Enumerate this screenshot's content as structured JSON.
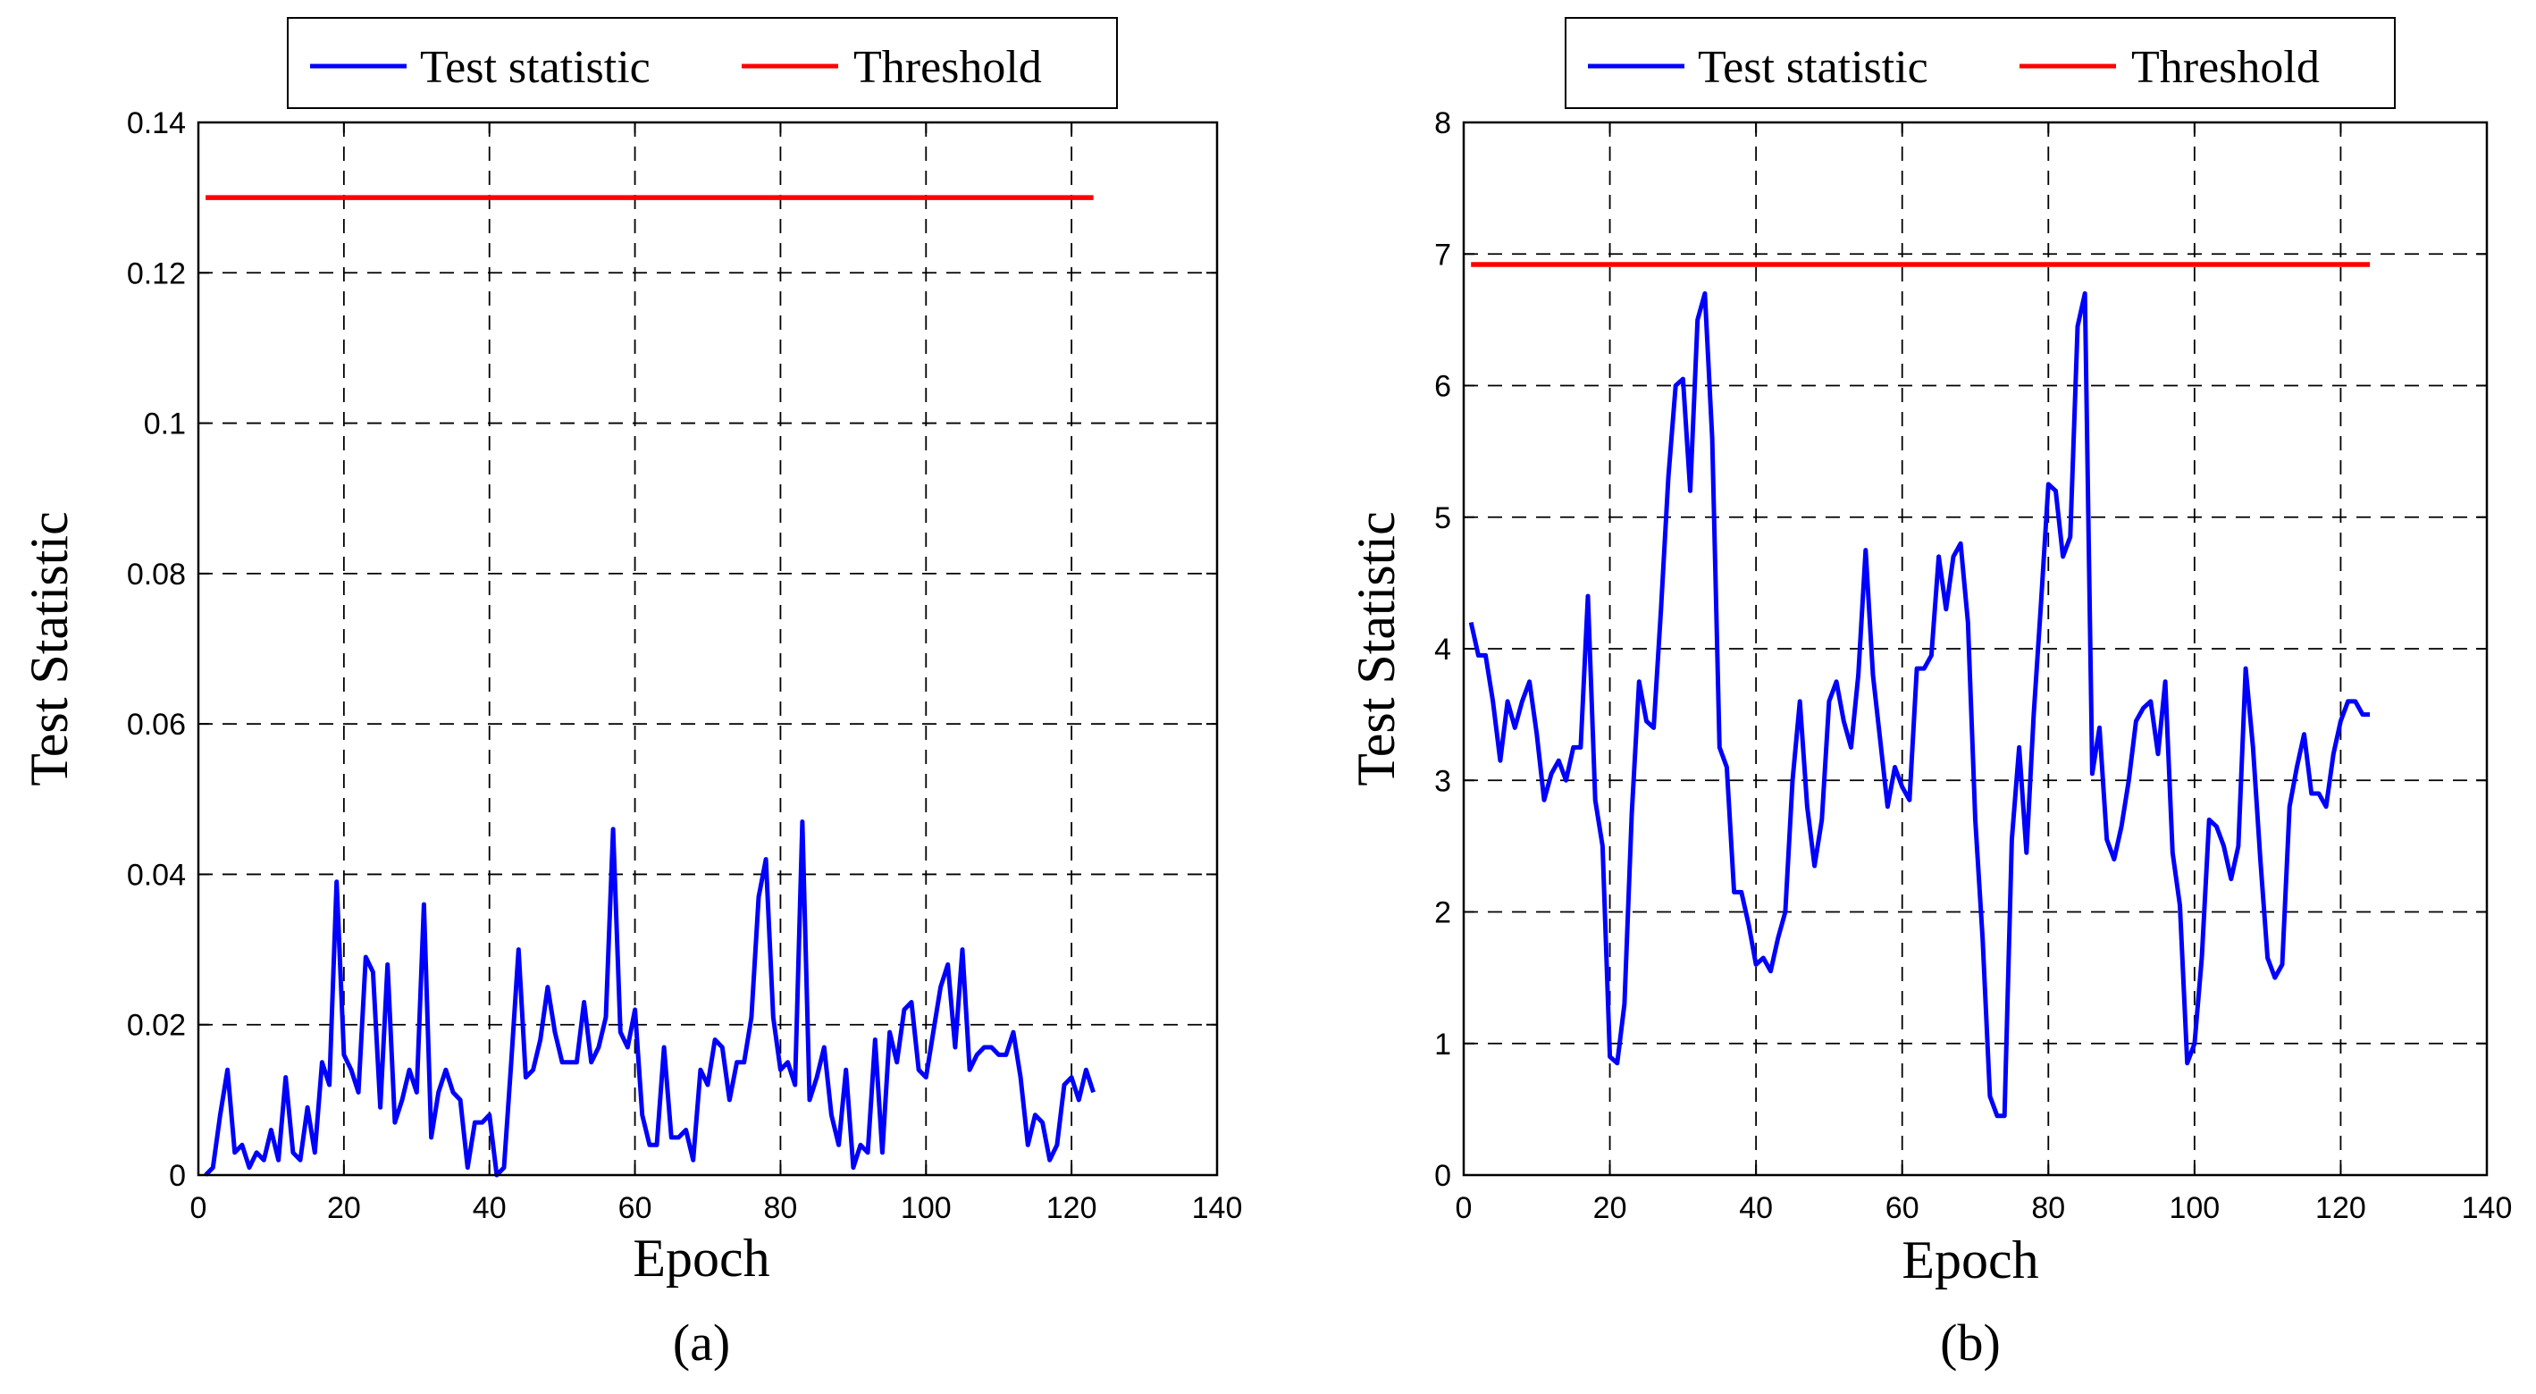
{
  "chart_data": [
    {
      "type": "line",
      "caption": "(a)",
      "xlabel": "Epoch",
      "ylabel": "Test Statistic",
      "xlim": [
        0,
        140
      ],
      "ylim": [
        0,
        0.14
      ],
      "xticks": [
        0,
        20,
        40,
        60,
        80,
        100,
        120,
        140
      ],
      "yticks": [
        0,
        0.02,
        0.04,
        0.06,
        0.08,
        0.1,
        0.12,
        0.14
      ],
      "ytick_labels": [
        "0",
        "0.02",
        "0.04",
        "0.06",
        "0.08",
        "0.1",
        "0.12",
        "0.14"
      ],
      "xtick_labels": [
        "0",
        "20",
        "40",
        "60",
        "80",
        "100",
        "120",
        "140"
      ],
      "grid": true,
      "legend_position": "top",
      "series": [
        {
          "name": "Test statistic",
          "color": "#0000ff",
          "x": [
            1,
            2,
            3,
            4,
            5,
            6,
            7,
            8,
            9,
            10,
            11,
            12,
            13,
            14,
            15,
            16,
            17,
            18,
            19,
            20,
            21,
            22,
            23,
            24,
            25,
            26,
            27,
            28,
            29,
            30,
            31,
            32,
            33,
            34,
            35,
            36,
            37,
            38,
            39,
            40,
            41,
            42,
            43,
            44,
            45,
            46,
            47,
            48,
            49,
            50,
            51,
            52,
            53,
            54,
            55,
            56,
            57,
            58,
            59,
            60,
            61,
            62,
            63,
            64,
            65,
            66,
            67,
            68,
            69,
            70,
            71,
            72,
            73,
            74,
            75,
            76,
            77,
            78,
            79,
            80,
            81,
            82,
            83,
            84,
            85,
            86,
            87,
            88,
            89,
            90,
            91,
            92,
            93,
            94,
            95,
            96,
            97,
            98,
            99,
            100,
            101,
            102,
            103,
            104,
            105,
            106,
            107,
            108,
            109,
            110,
            111,
            112,
            113,
            114,
            115,
            116,
            117,
            118,
            119,
            120,
            121,
            122,
            123
          ],
          "y": [
            0.0,
            0.001,
            0.008,
            0.014,
            0.003,
            0.004,
            0.001,
            0.003,
            0.002,
            0.006,
            0.002,
            0.013,
            0.003,
            0.002,
            0.009,
            0.003,
            0.015,
            0.012,
            0.039,
            0.016,
            0.014,
            0.011,
            0.029,
            0.027,
            0.009,
            0.028,
            0.007,
            0.01,
            0.014,
            0.011,
            0.036,
            0.005,
            0.011,
            0.014,
            0.011,
            0.01,
            0.001,
            0.007,
            0.007,
            0.008,
            0.0,
            0.001,
            0.015,
            0.03,
            0.013,
            0.014,
            0.018,
            0.025,
            0.019,
            0.015,
            0.015,
            0.015,
            0.023,
            0.015,
            0.017,
            0.021,
            0.046,
            0.019,
            0.017,
            0.022,
            0.008,
            0.004,
            0.004,
            0.017,
            0.005,
            0.005,
            0.006,
            0.002,
            0.014,
            0.012,
            0.018,
            0.017,
            0.01,
            0.015,
            0.015,
            0.021,
            0.037,
            0.042,
            0.021,
            0.014,
            0.015,
            0.012,
            0.047,
            0.01,
            0.013,
            0.017,
            0.008,
            0.004,
            0.014,
            0.001,
            0.004,
            0.003,
            0.018,
            0.003,
            0.019,
            0.015,
            0.022,
            0.023,
            0.014,
            0.013,
            0.019,
            0.025,
            0.028,
            0.017,
            0.03,
            0.014,
            0.016,
            0.017,
            0.017,
            0.016,
            0.016,
            0.019,
            0.013,
            0.004,
            0.008,
            0.007,
            0.002,
            0.004,
            0.012,
            0.013,
            0.01,
            0.014,
            0.011
          ]
        },
        {
          "name": "Threshold",
          "color": "#ff0000",
          "x": [
            1,
            123
          ],
          "y": [
            0.13,
            0.13
          ]
        }
      ]
    },
    {
      "type": "line",
      "caption": "(b)",
      "xlabel": "Epoch",
      "ylabel": "Test Statistic",
      "xlim": [
        0,
        140
      ],
      "ylim": [
        0,
        8
      ],
      "xticks": [
        0,
        20,
        40,
        60,
        80,
        100,
        120,
        140
      ],
      "yticks": [
        0,
        1,
        2,
        3,
        4,
        5,
        6,
        7,
        8
      ],
      "ytick_labels": [
        "0",
        "1",
        "2",
        "3",
        "4",
        "5",
        "6",
        "7",
        "8"
      ],
      "xtick_labels": [
        "0",
        "20",
        "40",
        "60",
        "80",
        "100",
        "120",
        "140"
      ],
      "grid": true,
      "legend_position": "top",
      "series": [
        {
          "name": "Test statistic",
          "color": "#0000ff",
          "x": [
            1,
            2,
            3,
            4,
            5,
            6,
            7,
            8,
            9,
            10,
            11,
            12,
            13,
            14,
            15,
            16,
            17,
            18,
            19,
            20,
            21,
            22,
            23,
            24,
            25,
            26,
            27,
            28,
            29,
            30,
            31,
            32,
            33,
            34,
            35,
            36,
            37,
            38,
            39,
            40,
            41,
            42,
            43,
            44,
            45,
            46,
            47,
            48,
            49,
            50,
            51,
            52,
            53,
            54,
            55,
            56,
            57,
            58,
            59,
            60,
            61,
            62,
            63,
            64,
            65,
            66,
            67,
            68,
            69,
            70,
            71,
            72,
            73,
            74,
            75,
            76,
            77,
            78,
            79,
            80,
            81,
            82,
            83,
            84,
            85,
            86,
            87,
            88,
            89,
            90,
            91,
            92,
            93,
            94,
            95,
            96,
            97,
            98,
            99,
            100,
            101,
            102,
            103,
            104,
            105,
            106,
            107,
            108,
            109,
            110,
            111,
            112,
            113,
            114,
            115,
            116,
            117,
            118,
            119,
            120,
            121,
            122,
            123,
            124
          ],
          "y": [
            4.2,
            3.95,
            3.95,
            3.6,
            3.15,
            3.6,
            3.4,
            3.6,
            3.75,
            3.35,
            2.85,
            3.05,
            3.15,
            3.0,
            3.25,
            3.25,
            4.4,
            2.85,
            2.5,
            0.9,
            0.85,
            1.3,
            2.75,
            3.75,
            3.45,
            3.4,
            4.3,
            5.3,
            6.0,
            6.05,
            5.2,
            6.5,
            6.7,
            5.6,
            3.25,
            3.1,
            2.15,
            2.15,
            1.9,
            1.6,
            1.65,
            1.55,
            1.8,
            2.0,
            3.0,
            3.6,
            2.8,
            2.35,
            2.7,
            3.6,
            3.75,
            3.45,
            3.25,
            3.8,
            4.75,
            3.8,
            3.3,
            2.8,
            3.1,
            2.95,
            2.85,
            3.85,
            3.85,
            3.95,
            4.7,
            4.3,
            4.7,
            4.8,
            4.2,
            2.7,
            1.8,
            0.6,
            0.45,
            0.45,
            2.55,
            3.25,
            2.45,
            3.5,
            4.35,
            5.25,
            5.2,
            4.7,
            4.85,
            6.45,
            6.7,
            3.05,
            3.4,
            2.55,
            2.4,
            2.65,
            3.0,
            3.45,
            3.55,
            3.6,
            3.2,
            3.75,
            2.45,
            2.05,
            0.85,
            1.0,
            1.65,
            2.7,
            2.65,
            2.5,
            2.25,
            2.5,
            3.85,
            3.25,
            2.4,
            1.65,
            1.5,
            1.6,
            2.8,
            3.1,
            3.35,
            2.9,
            2.9,
            2.8,
            3.2,
            3.45,
            3.6,
            3.6,
            3.5,
            3.5
          ]
        },
        {
          "name": "Threshold",
          "color": "#ff0000",
          "x": [
            1,
            124
          ],
          "y": [
            6.92,
            6.92
          ]
        }
      ]
    }
  ]
}
